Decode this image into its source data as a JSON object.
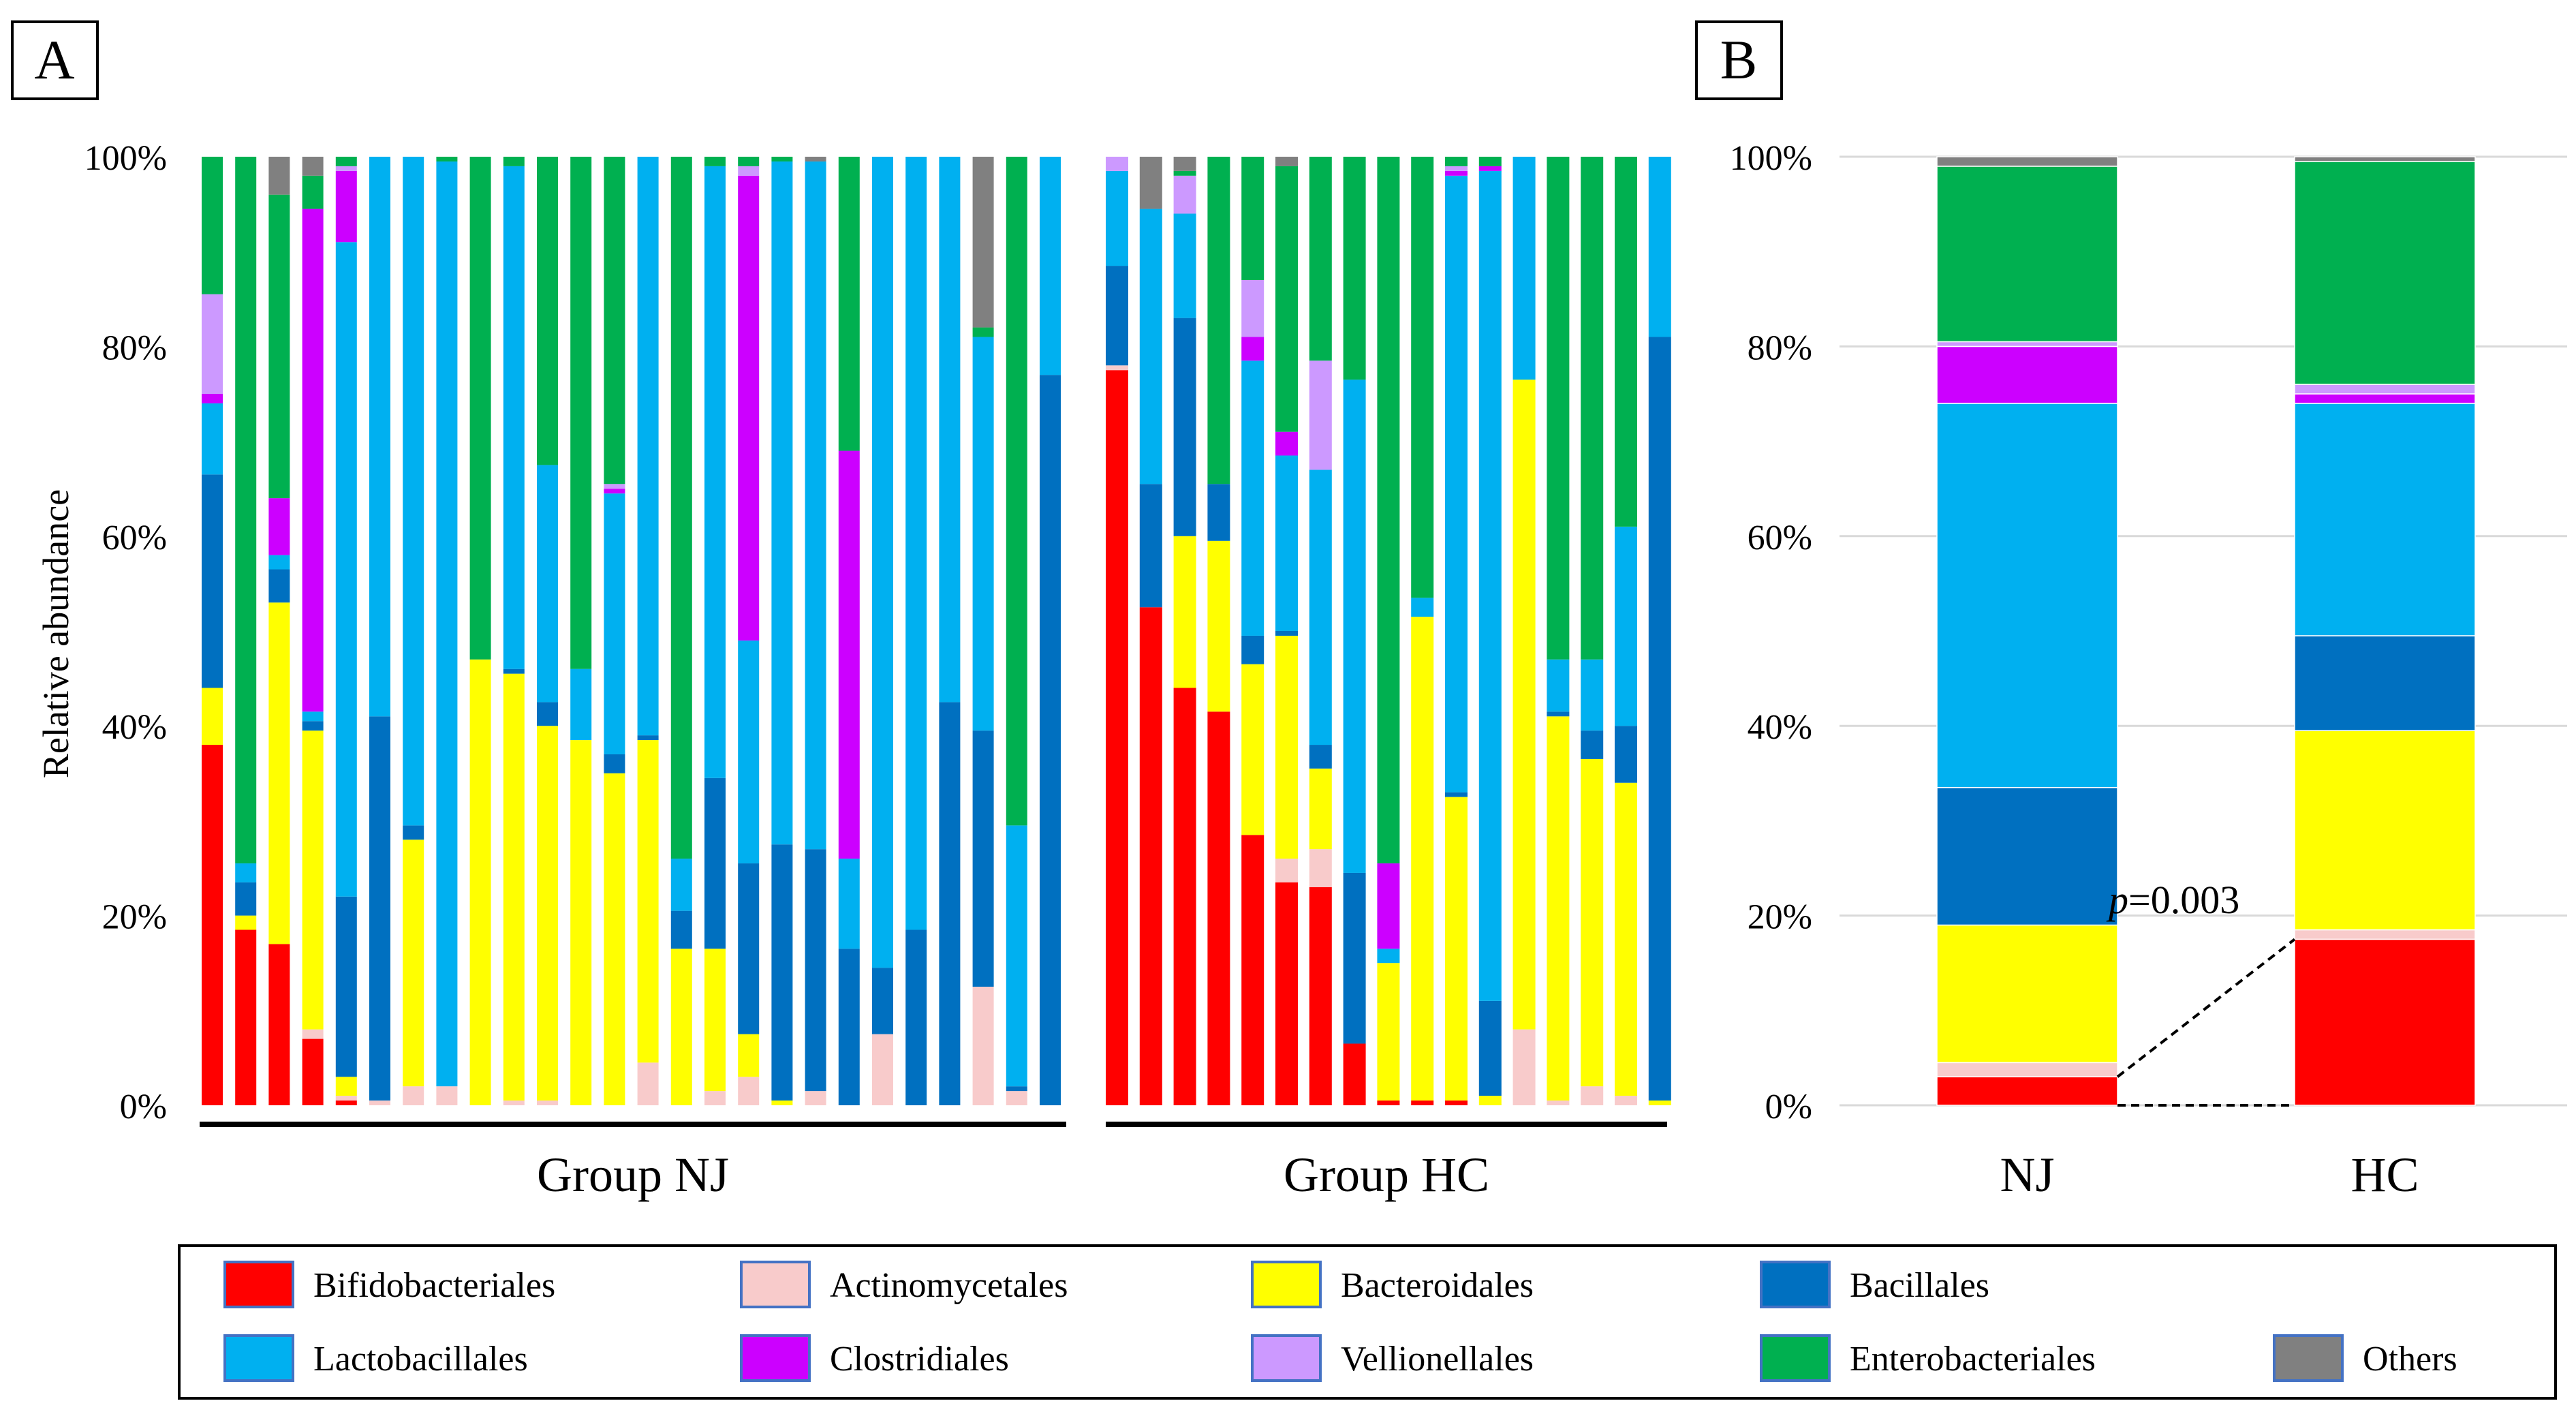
{
  "figure": {
    "panel_a_label": "A",
    "panel_b_label": "B",
    "significance": {
      "p_italic": "p",
      "p_value": "=0.003"
    }
  },
  "legend": {
    "items": [
      {
        "name": "Bifidobacteriales",
        "color": "#FF0000"
      },
      {
        "name": "Actinomycetales",
        "color": "#F8CBCB"
      },
      {
        "name": "Bacteroidales",
        "color": "#FFFF00"
      },
      {
        "name": "Bacillales",
        "color": "#0070C0"
      },
      {
        "name": "Lactobacillales",
        "color": "#00B0F0"
      },
      {
        "name": "Clostridiales",
        "color": "#CC00FF"
      },
      {
        "name": "Vellionellales",
        "color": "#CC99FF"
      },
      {
        "name": "Enterobacteriales",
        "color": "#00B050"
      },
      {
        "name": "Others",
        "color": "#808080"
      }
    ]
  },
  "chart_data": [
    {
      "panel": "A",
      "type": "bar",
      "stacked": true,
      "ylabel": "Relative abundance",
      "ylim": [
        0,
        100
      ],
      "yticks": [
        "0%",
        "20%",
        "40%",
        "60%",
        "80%",
        "100%"
      ],
      "series_order": [
        "Bifidobacteriales",
        "Actinomycetales",
        "Bacteroidales",
        "Bacillales",
        "Lactobacillales",
        "Clostridiales",
        "Vellionellales",
        "Enterobacteriales",
        "Others"
      ],
      "groups": [
        {
          "label": "Group NJ",
          "bars": [
            [
              38,
              0,
              6,
              22.5,
              7.5,
              1,
              10.5,
              14.5,
              0
            ],
            [
              18.5,
              0,
              1.5,
              3.5,
              2,
              0,
              0,
              74.5,
              0
            ],
            [
              17,
              0,
              36,
              3.5,
              1.5,
              6,
              0,
              32,
              4
            ],
            [
              7,
              1,
              31.5,
              1,
              1,
              53,
              0,
              3.5,
              2
            ],
            [
              0.5,
              0.5,
              2,
              19,
              69,
              7.5,
              0.5,
              1,
              0
            ],
            [
              0,
              0.5,
              0,
              40.5,
              59,
              0,
              0,
              0,
              0
            ],
            [
              0,
              2,
              26,
              1.5,
              70.5,
              0,
              0,
              0,
              0
            ],
            [
              0,
              2,
              0,
              0,
              97.5,
              0,
              0,
              0.5,
              0
            ],
            [
              0,
              0,
              47,
              0,
              0,
              0,
              0,
              53,
              0
            ],
            [
              0,
              0.5,
              45,
              0.5,
              53,
              0,
              0,
              1,
              0
            ],
            [
              0,
              0.5,
              39.5,
              2.5,
              25,
              0,
              0,
              32.5,
              0
            ],
            [
              0,
              0,
              38.5,
              0,
              7.5,
              0,
              0,
              54,
              0
            ],
            [
              0,
              0,
              35,
              2,
              27.5,
              0.5,
              0.5,
              34.5,
              0
            ],
            [
              0,
              4.5,
              34,
              0.5,
              61,
              0,
              0,
              0,
              0
            ],
            [
              0,
              0,
              16.5,
              4,
              5.5,
              0,
              0,
              74,
              0
            ],
            [
              0,
              1.5,
              15,
              18,
              64.5,
              0,
              0,
              1,
              0
            ],
            [
              0,
              3,
              4.5,
              18,
              23.5,
              49,
              1,
              1,
              0
            ],
            [
              0,
              0,
              0.5,
              27,
              72,
              0,
              0,
              0.5,
              0
            ],
            [
              0,
              1.5,
              0,
              25.5,
              72.5,
              0,
              0,
              0,
              0.5
            ],
            [
              0,
              0,
              0,
              16.5,
              9.5,
              43,
              0,
              31,
              0
            ],
            [
              0,
              7.5,
              0,
              7,
              85.5,
              0,
              0,
              0,
              0
            ],
            [
              0,
              0,
              0,
              18.5,
              81.5,
              0,
              0,
              0,
              0
            ],
            [
              0,
              0,
              0,
              42.5,
              57.5,
              0,
              0,
              0,
              0
            ],
            [
              0,
              12.5,
              0,
              27,
              41.5,
              0,
              0,
              1,
              18
            ],
            [
              0,
              1.5,
              0,
              0.5,
              27.5,
              0,
              0,
              70.5,
              0
            ],
            [
              0,
              0,
              0,
              77,
              23,
              0,
              0,
              0,
              0
            ]
          ]
        },
        {
          "label": "Group HC",
          "bars": [
            [
              77.5,
              0.5,
              0,
              10.5,
              10,
              0,
              1.5,
              0,
              0
            ],
            [
              52.5,
              0,
              0,
              13,
              29,
              0,
              0,
              0,
              5.5
            ],
            [
              44,
              0,
              16,
              23,
              11,
              0,
              4,
              0.5,
              1.5
            ],
            [
              41.5,
              0,
              18,
              6,
              0,
              0,
              0,
              34.5,
              0
            ],
            [
              28.5,
              0,
              18,
              3,
              29,
              2.5,
              6,
              13,
              0
            ],
            [
              23.5,
              2.5,
              23.5,
              0.5,
              18.5,
              2.5,
              0,
              28,
              1
            ],
            [
              23,
              4,
              8.5,
              2.5,
              29,
              0,
              11.5,
              21.5,
              0
            ],
            [
              6.5,
              0,
              0,
              18,
              52,
              0,
              0,
              23.5,
              0
            ],
            [
              0.5,
              0,
              14.5,
              0,
              1.5,
              9,
              0,
              74.5,
              0
            ],
            [
              0.5,
              0,
              51,
              0,
              2,
              0,
              0,
              46.5,
              0
            ],
            [
              0.5,
              0,
              32,
              0.5,
              65,
              0.5,
              0.5,
              1,
              0
            ],
            [
              0,
              0,
              1,
              10,
              87.5,
              0.5,
              0,
              1,
              0
            ],
            [
              0,
              8,
              68.5,
              0,
              23.5,
              0,
              0,
              0,
              0
            ],
            [
              0,
              0.5,
              40.5,
              0.5,
              5.5,
              0,
              0,
              53,
              0
            ],
            [
              0,
              2,
              34.5,
              3,
              7.5,
              0,
              0,
              53,
              0
            ],
            [
              0,
              1,
              33,
              6,
              21,
              0,
              0,
              39,
              0
            ],
            [
              0,
              0,
              0.5,
              80.5,
              19,
              0,
              0,
              0,
              0
            ]
          ]
        }
      ]
    },
    {
      "panel": "B",
      "type": "bar",
      "stacked": true,
      "ylim": [
        0,
        100
      ],
      "yticks": [
        "0%",
        "20%",
        "40%",
        "60%",
        "80%",
        "100%"
      ],
      "categories": [
        "NJ",
        "HC"
      ],
      "series": [
        {
          "name": "Bifidobacteriales",
          "values": [
            3,
            17.5
          ]
        },
        {
          "name": "Actinomycetales",
          "values": [
            1.5,
            1
          ]
        },
        {
          "name": "Bacteroidales",
          "values": [
            14.5,
            21
          ]
        },
        {
          "name": "Bacillales",
          "values": [
            14.5,
            10
          ]
        },
        {
          "name": "Lactobacillales",
          "values": [
            40.5,
            24.5
          ]
        },
        {
          "name": "Clostridiales",
          "values": [
            6,
            1
          ]
        },
        {
          "name": "Vellionellales",
          "values": [
            0.5,
            1
          ]
        },
        {
          "name": "Enterobacteriales",
          "values": [
            18.5,
            23.5
          ]
        },
        {
          "name": "Others",
          "values": [
            1,
            0.5
          ]
        }
      ]
    }
  ]
}
